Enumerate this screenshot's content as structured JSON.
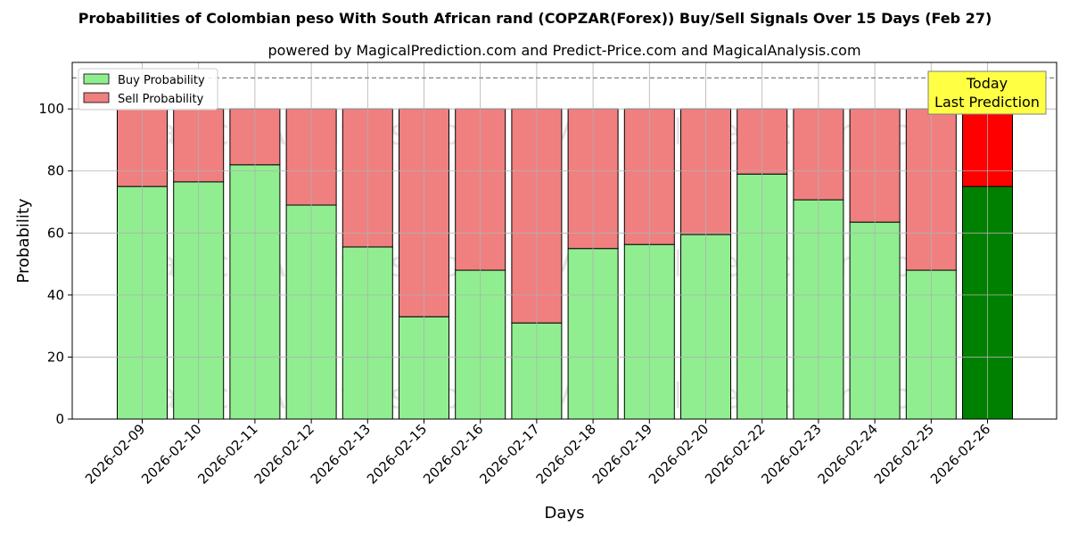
{
  "chart_data": {
    "type": "bar",
    "stacked": true,
    "title": "Probabilities of Colombian peso With South African rand (COPZAR(Forex)) Buy/Sell Signals Over 15 Days (Feb 27)",
    "subtitle": "powered by MagicalPrediction.com and Predict-Price.com and MagicalAnalysis.com",
    "xlabel": "Days",
    "ylabel": "Probability",
    "ylim": [
      0,
      115
    ],
    "yticks": [
      0,
      20,
      40,
      60,
      80,
      100
    ],
    "reference_line": 110,
    "grid": true,
    "legend_position": "top-left",
    "categories": [
      "2026-02-09",
      "2026-02-10",
      "2026-02-11",
      "2026-02-12",
      "2026-02-13",
      "2026-02-15",
      "2026-02-16",
      "2026-02-17",
      "2026-02-18",
      "2026-02-19",
      "2026-02-20",
      "2026-02-22",
      "2026-02-23",
      "2026-02-24",
      "2026-02-25",
      "2026-02-26"
    ],
    "series": [
      {
        "name": "Buy Probability",
        "color": "#90ee90",
        "highlight_color": "#008000",
        "values": [
          75,
          76.5,
          82,
          69,
          55.5,
          33,
          48,
          31,
          55,
          56.3,
          59.5,
          79,
          70.7,
          63.5,
          48,
          75
        ]
      },
      {
        "name": "Sell Probability",
        "color": "#f08080",
        "highlight_color": "#ff0000",
        "values": [
          25,
          23.5,
          18,
          31,
          44.5,
          67,
          52,
          69,
          45,
          43.7,
          40.5,
          21,
          29.3,
          36.5,
          52,
          25
        ]
      }
    ],
    "highlight_index": 15,
    "annotation": {
      "lines": [
        "Today",
        "Last Prediction"
      ],
      "background": "#ffff44"
    },
    "watermarks": [
      "MagicalAnalysis.com",
      "MagicalPrediction.com"
    ]
  }
}
